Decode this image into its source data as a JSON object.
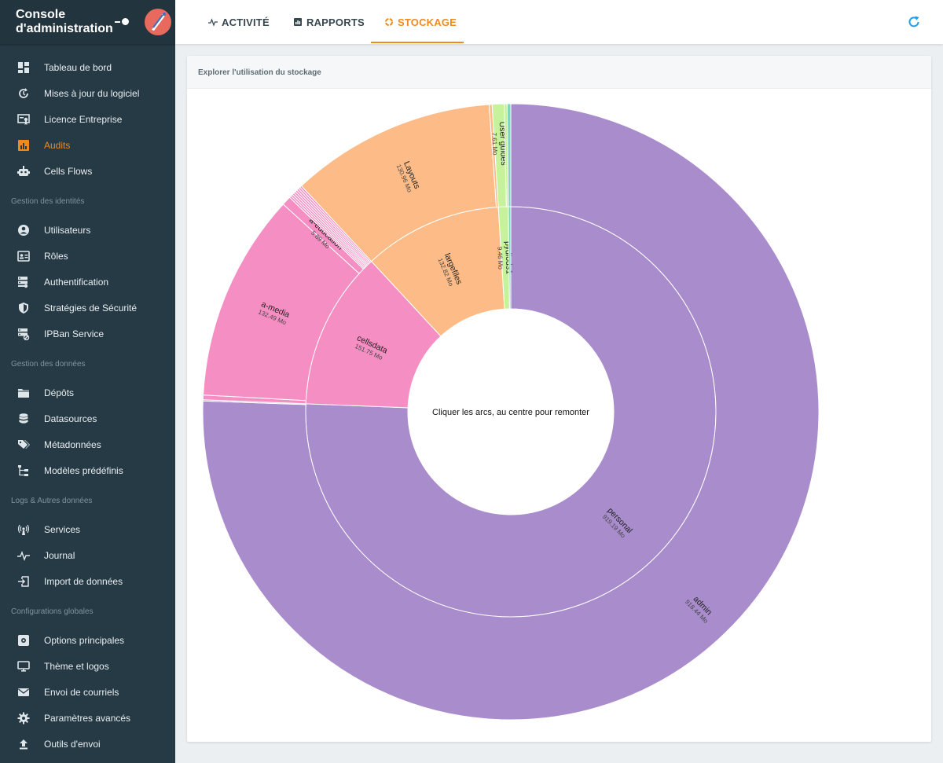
{
  "app": {
    "title": "Console d'administration"
  },
  "sidebar": {
    "items_top": [
      {
        "label": "Tableau de bord",
        "icon": "dashboard-icon"
      },
      {
        "label": "Mises à jour du logiciel",
        "icon": "update-icon"
      },
      {
        "label": "Licence Entreprise",
        "icon": "certificate-icon"
      },
      {
        "label": "Audits",
        "icon": "chart-icon",
        "active": true
      },
      {
        "label": "Cells Flows",
        "icon": "robot-icon"
      }
    ],
    "section_identities": "Gestion des identités",
    "items_identities": [
      {
        "label": "Utilisateurs",
        "icon": "user-icon"
      },
      {
        "label": "Rôles",
        "icon": "id-card-icon"
      },
      {
        "label": "Authentification",
        "icon": "server-key-icon"
      },
      {
        "label": "Stratégies de Sécurité",
        "icon": "shield-icon"
      },
      {
        "label": "IPBan Service",
        "icon": "server-block-icon"
      }
    ],
    "section_data": "Gestion des données",
    "items_data": [
      {
        "label": "Dépôts",
        "icon": "folder-icon"
      },
      {
        "label": "Datasources",
        "icon": "database-icon"
      },
      {
        "label": "Métadonnées",
        "icon": "tags-icon"
      },
      {
        "label": "Modèles prédéfinis",
        "icon": "tree-icon"
      }
    ],
    "section_logs": "Logs & Autres données",
    "items_logs": [
      {
        "label": "Services",
        "icon": "broadcast-icon"
      },
      {
        "label": "Journal",
        "icon": "pulse-icon"
      },
      {
        "label": "Import de données",
        "icon": "import-icon"
      }
    ],
    "section_global": "Configurations globales",
    "items_global": [
      {
        "label": "Options principales",
        "icon": "settings-box-icon"
      },
      {
        "label": "Thème et logos",
        "icon": "monitor-icon"
      },
      {
        "label": "Envoi de courriels",
        "icon": "mail-icon"
      },
      {
        "label": "Paramètres avancés",
        "icon": "gear-icon"
      },
      {
        "label": "Outils d'envoi",
        "icon": "upload-icon"
      }
    ]
  },
  "tabs": [
    {
      "label": "ACTIVITÉ",
      "icon": "pulse-icon"
    },
    {
      "label": "RAPPORTS",
      "icon": "report-icon"
    },
    {
      "label": "STOCKAGE",
      "icon": "storage-icon",
      "active": true
    }
  ],
  "toolbar": {
    "refresh_icon": "refresh-icon"
  },
  "card": {
    "title": "Explorer l'utilisation du stockage",
    "center_hint": "Cliquer les arcs, au centre pour remonter"
  },
  "colors": {
    "accent": "#f08a1c",
    "personal": "#a98ccc",
    "cells": "#f58ec2",
    "files": "#fdbc87",
    "pydio": "#c5f29a",
    "sidebar": "#263a45"
  },
  "chart_data": {
    "type": "sunburst",
    "center_label": "Cliquer les arcs, au centre pour remonter",
    "unit": "Mo",
    "inner_ring": [
      {
        "name": "personal",
        "value": 919.19,
        "label": "919.19 Mo",
        "color": "#a98ccc"
      },
      {
        "name": "cellsdata",
        "value": 151.75,
        "label": "151.75 Mo",
        "color": "#f58ec2"
      },
      {
        "name": "largefiles",
        "value": 132.82,
        "label": "132.82 Mo",
        "color": "#fdbc87"
      },
      {
        "name": "pydiods1",
        "value": 9.46,
        "label": "9.46 Mo",
        "color": "#c5f29a"
      },
      {
        "name": "",
        "value": 2.3,
        "label": "",
        "color": "#7fd3c0"
      }
    ],
    "outer_ring": [
      {
        "name": "admin",
        "value": 918.44,
        "label": "918.44 Mo",
        "parent": "personal",
        "color": "#a98ccc"
      },
      {
        "name": "",
        "value": 0.75,
        "label": "",
        "parent": "personal",
        "color": "#a98ccc"
      },
      {
        "name": "",
        "value": 3.0,
        "label": "",
        "parent": "cellsdata",
        "color": "#f58ec2"
      },
      {
        "name": "a-media",
        "value": 132.49,
        "label": "132.49 Mo",
        "parent": "cellsdata",
        "color": "#f58ec2"
      },
      {
        "name": "a-education",
        "value": 5.89,
        "label": "5.89 Mo",
        "parent": "cellsdata",
        "color": "#f58ec2"
      },
      {
        "name": "",
        "value": 10.37,
        "label": "",
        "parent": "cellsdata",
        "color": "#f58ec2",
        "slices": 8
      },
      {
        "name": "Layouts",
        "value": 130.96,
        "label": "130.96 Mo",
        "parent": "largefiles",
        "color": "#fdbc87"
      },
      {
        "name": "",
        "value": 1.86,
        "label": "",
        "parent": "largefiles",
        "color": "#fdbc87"
      },
      {
        "name": "User guides",
        "value": 7.61,
        "label": "7.61 Mo",
        "parent": "pydiods1",
        "color": "#c5f29a"
      },
      {
        "name": "",
        "value": 1.85,
        "label": "",
        "parent": "pydiods1",
        "color": "#c5f29a"
      },
      {
        "name": "",
        "value": 2.3,
        "label": "",
        "parent": "",
        "color": "#7fd3c0"
      }
    ]
  }
}
